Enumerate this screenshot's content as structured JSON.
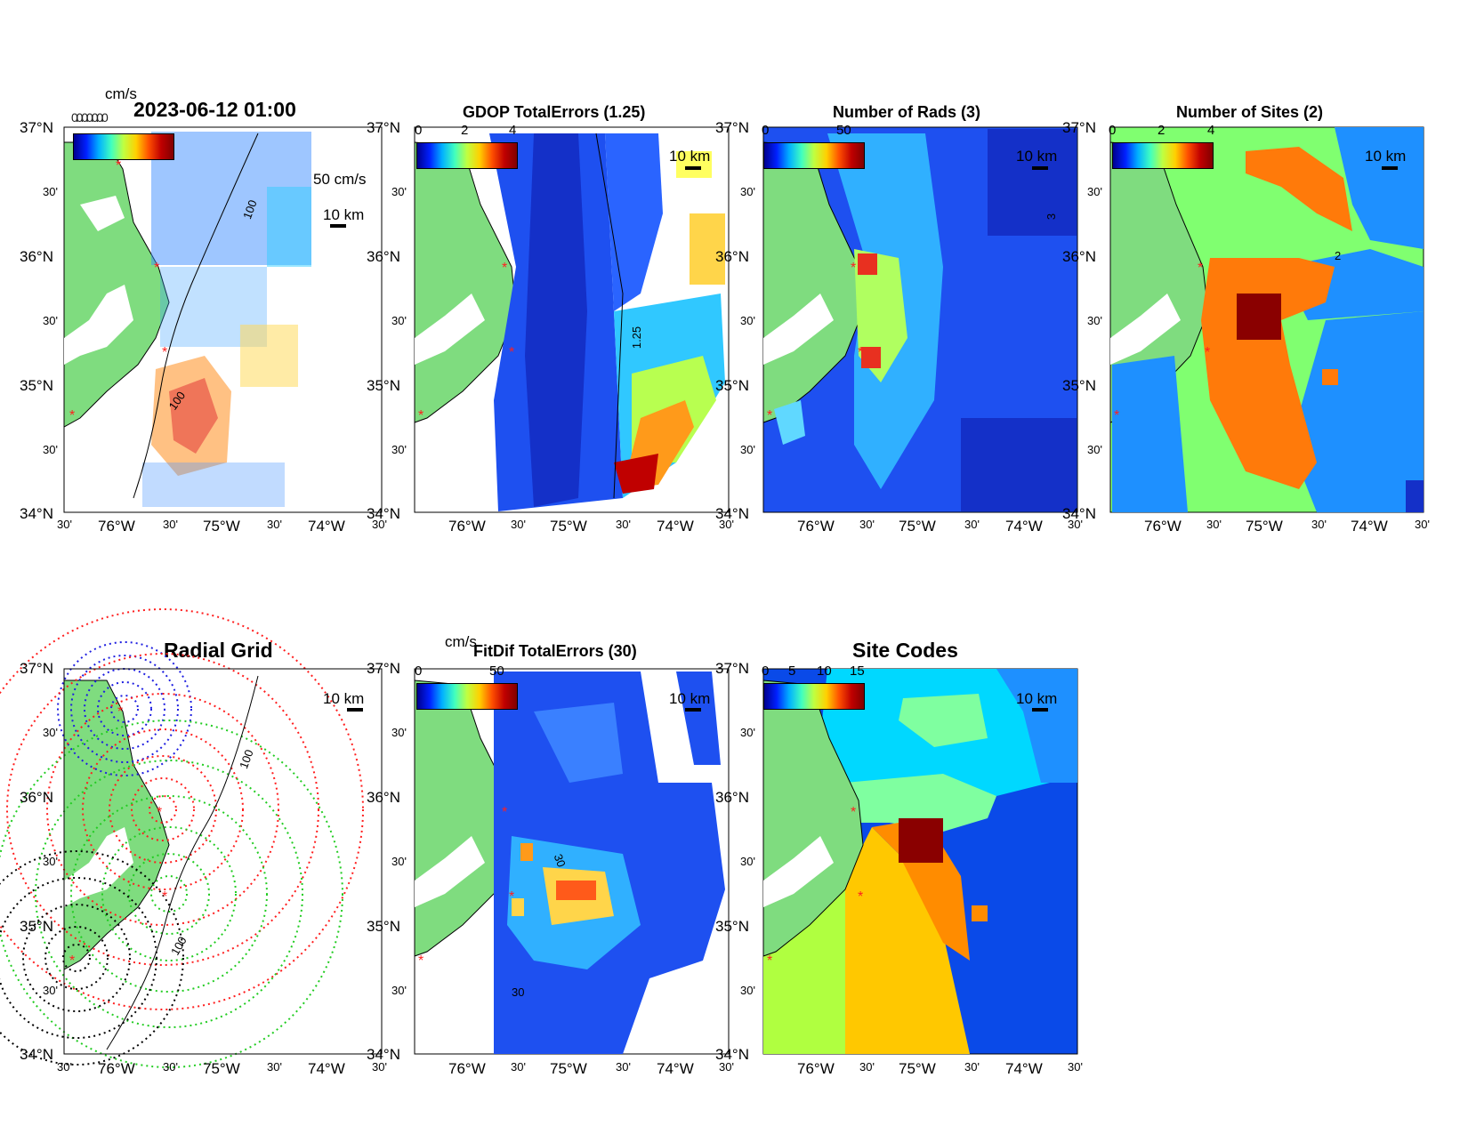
{
  "figure": {
    "timestamp": "2023-06-12 01:00",
    "overlap_text": "0.0.0.0.0.0.0",
    "lat_labels": [
      "37°N",
      "30'",
      "36°N",
      "30'",
      "35°N",
      "30'",
      "34°N"
    ],
    "lon_labels": [
      "30'",
      "76°W",
      "30'",
      "75°W",
      "30'",
      "74°W",
      "30'"
    ],
    "scale_label": "10 km",
    "colors": {
      "land": "#7fdc7f",
      "site_marker": "#ff2020",
      "grid_blue": "#1e1ee0",
      "grid_red": "#ff1e1e",
      "grid_green": "#22cc22",
      "grid_black": "#000000"
    }
  },
  "panels": [
    {
      "id": "total-vectors",
      "title": "",
      "units": "cm/s",
      "vector_scale_label": "50 cm/s",
      "isobath_label": "100",
      "isobath_label_alt": "100"
    },
    {
      "id": "gdop",
      "title": "GDOP TotalErrors (1.25)",
      "cbar_ticks": [
        "0",
        "2",
        "4"
      ],
      "contour_label": "1.25"
    },
    {
      "id": "num-rads",
      "title": "Number of Rads (3)",
      "cbar_ticks": [
        "0",
        "50"
      ],
      "contour_label": "3"
    },
    {
      "id": "num-sites",
      "title": "Number of Sites (2)",
      "cbar_ticks": [
        "0",
        "2",
        "4"
      ],
      "contour_label": "2"
    },
    {
      "id": "radial-grid",
      "title": "Radial Grid",
      "isobath_label": "100"
    },
    {
      "id": "fitdif",
      "title": "FitDif TotalErrors (30)",
      "units": "cm/s",
      "cbar_ticks": [
        "0",
        "50"
      ],
      "contour_label": "30"
    },
    {
      "id": "site-codes",
      "title": "Site Codes",
      "cbar_ticks": [
        "0",
        "5",
        "10",
        "15"
      ]
    }
  ]
}
